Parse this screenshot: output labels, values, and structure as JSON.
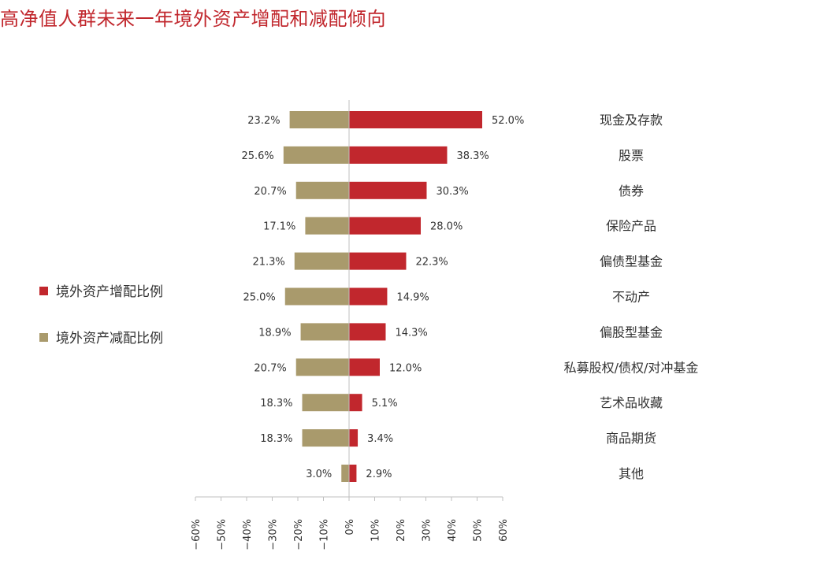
{
  "chart_data": {
    "type": "bar",
    "orientation": "horizontal-diverging",
    "title": "高净值人群未来一年境外资产增配和减配倾向",
    "categories": [
      "现金及存款",
      "股票",
      "债券",
      "保险产品",
      "偏债型基金",
      "不动产",
      "偏股型基金",
      "私募股权/债权/对冲基金",
      "艺术品收藏",
      "商品期货",
      "其他"
    ],
    "series": [
      {
        "name": "境外资产增配比例",
        "color": "#c1272d",
        "values": [
          52.0,
          38.3,
          30.3,
          28.0,
          22.3,
          14.9,
          14.3,
          12.0,
          5.1,
          3.4,
          2.9
        ],
        "labels": [
          "52.0%",
          "38.3%",
          "30.3%",
          "28.0%",
          "22.3%",
          "14.9%",
          "14.3%",
          "12.0%",
          "5.1%",
          "3.4%",
          "2.9%"
        ]
      },
      {
        "name": "境外资产减配比例",
        "color": "#a99a6c",
        "values": [
          23.2,
          25.6,
          20.7,
          17.1,
          21.3,
          25.0,
          18.9,
          20.7,
          18.3,
          18.3,
          3.0
        ],
        "labels": [
          "23.2%",
          "25.6%",
          "20.7%",
          "17.1%",
          "21.3%",
          "25.0%",
          "18.9%",
          "20.7%",
          "18.3%",
          "18.3%",
          "3.0%"
        ]
      }
    ],
    "xlim": [
      -60,
      60
    ],
    "xticks": [
      -60,
      -50,
      -40,
      -30,
      -20,
      -10,
      0,
      10,
      20,
      30,
      40,
      50,
      60
    ],
    "xtick_labels": [
      "−60%",
      "−50%",
      "−40%",
      "−30%",
      "−20%",
      "−10%",
      "0%",
      "10%",
      "20%",
      "30%",
      "40%",
      "50%",
      "60%"
    ],
    "grid": false,
    "legend_position": "left"
  }
}
